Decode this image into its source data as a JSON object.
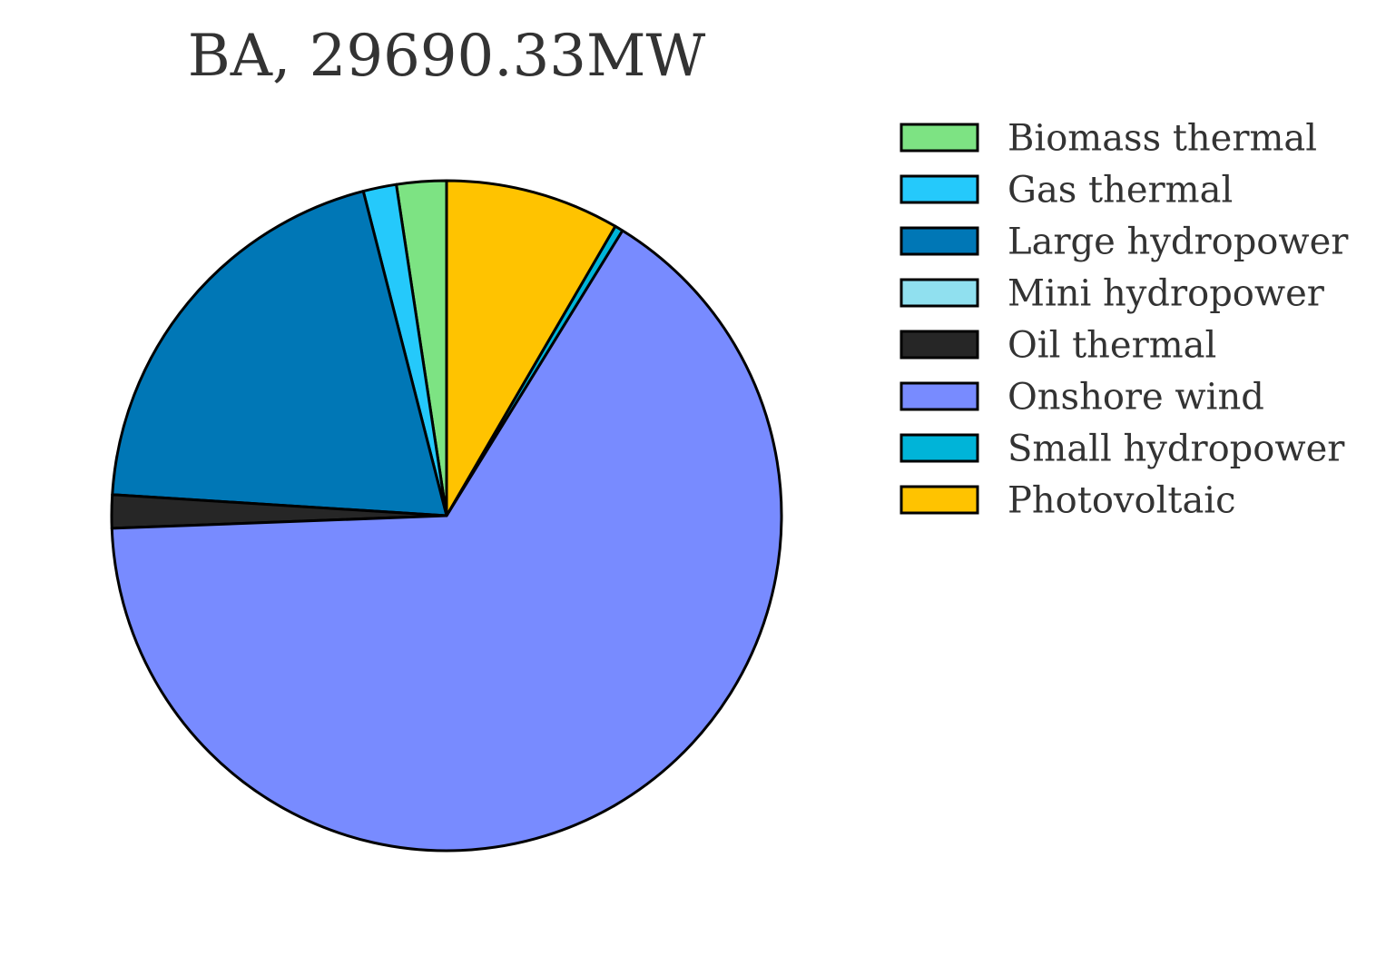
{
  "chart_data": {
    "type": "pie",
    "title": "BA, 29690.33MW",
    "legend_placement": "right",
    "start_angle_deg": 90,
    "direction": "counterclockwise",
    "categories": [
      "Biomass thermal",
      "Gas thermal",
      "Large hydropower",
      "Mini hydropower",
      "Oil thermal",
      "Onshore wind",
      "Small hydropower",
      "Photovoltaic"
    ],
    "values": [
      2.4,
      1.6,
      20.0,
      0.0,
      1.6,
      65.6,
      0.4,
      8.4
    ],
    "colors": [
      "#7de383",
      "#25c9fb",
      "#0077b6",
      "#90e0ef",
      "#262626",
      "#788bff",
      "#00b4d8",
      "#ffc300"
    ]
  }
}
